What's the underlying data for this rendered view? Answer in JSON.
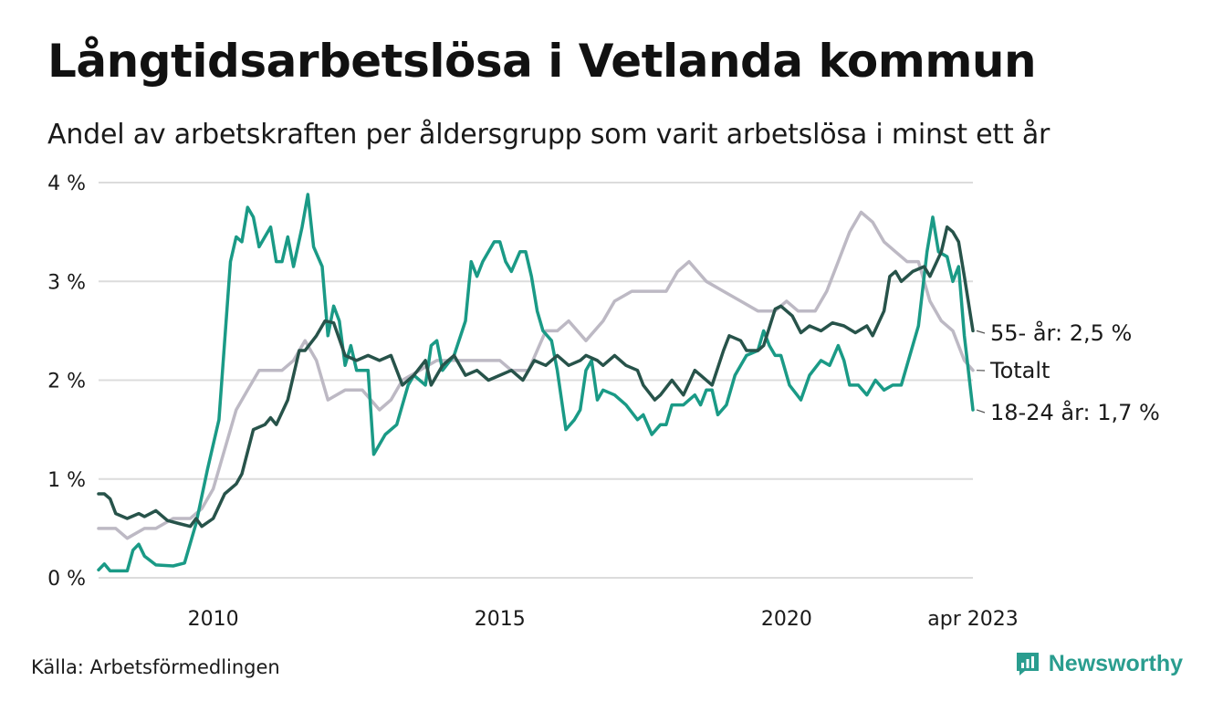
{
  "title": "Långtidsarbetslösa i Vetlanda kommun",
  "subtitle": "Andel av arbetskraften per åldersgrupp som varit arbetslösa i minst ett år",
  "source": "Källa: Arbetsförmedlingen",
  "brand": "Newsworthy",
  "colors": {
    "young": "#1a9a86",
    "old": "#27534a",
    "total": "#bdb9c4",
    "grid": "#dcdcdc",
    "brand": "#2a9d8f"
  },
  "chart_data": {
    "type": "line",
    "title": "Långtidsarbetslösa i Vetlanda kommun",
    "ylim": [
      0,
      4
    ],
    "xlim": [
      2008.0,
      2023.25
    ],
    "grid": true,
    "y_ticks": [
      {
        "value": 0,
        "label": "0 %"
      },
      {
        "value": 1,
        "label": "1 %"
      },
      {
        "value": 2,
        "label": "2 %"
      },
      {
        "value": 3,
        "label": "3 %"
      },
      {
        "value": 4,
        "label": "4 %"
      }
    ],
    "x_ticks": [
      {
        "value": 2010,
        "label": "2010"
      },
      {
        "value": 2015,
        "label": "2015"
      },
      {
        "value": 2020,
        "label": "2020"
      },
      {
        "value": 2023.25,
        "label": "apr 2023"
      }
    ],
    "series": [
      {
        "key": "total",
        "end_label": "Totalt",
        "points": [
          [
            2008.0,
            0.5
          ],
          [
            2008.3,
            0.5
          ],
          [
            2008.5,
            0.4
          ],
          [
            2008.8,
            0.5
          ],
          [
            2009.0,
            0.5
          ],
          [
            2009.3,
            0.6
          ],
          [
            2009.6,
            0.6
          ],
          [
            2009.8,
            0.7
          ],
          [
            2010.0,
            0.9
          ],
          [
            2010.2,
            1.3
          ],
          [
            2010.4,
            1.7
          ],
          [
            2010.6,
            1.9
          ],
          [
            2010.8,
            2.1
          ],
          [
            2011.0,
            2.1
          ],
          [
            2011.2,
            2.1
          ],
          [
            2011.4,
            2.2
          ],
          [
            2011.6,
            2.4
          ],
          [
            2011.8,
            2.2
          ],
          [
            2012.0,
            1.8
          ],
          [
            2012.3,
            1.9
          ],
          [
            2012.6,
            1.9
          ],
          [
            2012.9,
            1.7
          ],
          [
            2013.1,
            1.8
          ],
          [
            2013.3,
            2.0
          ],
          [
            2013.6,
            2.1
          ],
          [
            2013.9,
            2.2
          ],
          [
            2014.2,
            2.2
          ],
          [
            2014.5,
            2.2
          ],
          [
            2014.8,
            2.2
          ],
          [
            2015.0,
            2.2
          ],
          [
            2015.2,
            2.1
          ],
          [
            2015.5,
            2.1
          ],
          [
            2015.8,
            2.5
          ],
          [
            2016.0,
            2.5
          ],
          [
            2016.2,
            2.6
          ],
          [
            2016.5,
            2.4
          ],
          [
            2016.8,
            2.6
          ],
          [
            2017.0,
            2.8
          ],
          [
            2017.3,
            2.9
          ],
          [
            2017.6,
            2.9
          ],
          [
            2017.9,
            2.9
          ],
          [
            2018.1,
            3.1
          ],
          [
            2018.3,
            3.2
          ],
          [
            2018.6,
            3.0
          ],
          [
            2018.9,
            2.9
          ],
          [
            2019.2,
            2.8
          ],
          [
            2019.5,
            2.7
          ],
          [
            2019.8,
            2.7
          ],
          [
            2020.0,
            2.8
          ],
          [
            2020.2,
            2.7
          ],
          [
            2020.5,
            2.7
          ],
          [
            2020.7,
            2.9
          ],
          [
            2020.9,
            3.2
          ],
          [
            2021.1,
            3.5
          ],
          [
            2021.3,
            3.7
          ],
          [
            2021.5,
            3.6
          ],
          [
            2021.7,
            3.4
          ],
          [
            2021.9,
            3.3
          ],
          [
            2022.1,
            3.2
          ],
          [
            2022.3,
            3.2
          ],
          [
            2022.5,
            2.8
          ],
          [
            2022.7,
            2.6
          ],
          [
            2022.9,
            2.5
          ],
          [
            2023.1,
            2.2
          ],
          [
            2023.25,
            2.1
          ]
        ]
      },
      {
        "key": "young",
        "name": "18-24 år",
        "end_label": "18-24 år: 1,7 %",
        "points": [
          [
            2008.0,
            0.08
          ],
          [
            2008.1,
            0.14
          ],
          [
            2008.2,
            0.07
          ],
          [
            2008.4,
            0.07
          ],
          [
            2008.5,
            0.07
          ],
          [
            2008.6,
            0.28
          ],
          [
            2008.7,
            0.34
          ],
          [
            2008.8,
            0.22
          ],
          [
            2009.0,
            0.13
          ],
          [
            2009.3,
            0.12
          ],
          [
            2009.5,
            0.15
          ],
          [
            2009.7,
            0.55
          ],
          [
            2009.9,
            1.1
          ],
          [
            2010.1,
            1.6
          ],
          [
            2010.3,
            3.2
          ],
          [
            2010.4,
            3.45
          ],
          [
            2010.5,
            3.4
          ],
          [
            2010.6,
            3.75
          ],
          [
            2010.7,
            3.65
          ],
          [
            2010.8,
            3.35
          ],
          [
            2010.9,
            3.45
          ],
          [
            2011.0,
            3.55
          ],
          [
            2011.1,
            3.2
          ],
          [
            2011.2,
            3.2
          ],
          [
            2011.3,
            3.45
          ],
          [
            2011.4,
            3.15
          ],
          [
            2011.55,
            3.55
          ],
          [
            2011.65,
            3.88
          ],
          [
            2011.75,
            3.35
          ],
          [
            2011.9,
            3.15
          ],
          [
            2012.0,
            2.45
          ],
          [
            2012.1,
            2.75
          ],
          [
            2012.2,
            2.6
          ],
          [
            2012.3,
            2.15
          ],
          [
            2012.4,
            2.35
          ],
          [
            2012.5,
            2.1
          ],
          [
            2012.7,
            2.1
          ],
          [
            2012.8,
            1.25
          ],
          [
            2013.0,
            1.45
          ],
          [
            2013.2,
            1.55
          ],
          [
            2013.4,
            1.95
          ],
          [
            2013.5,
            2.05
          ],
          [
            2013.7,
            1.95
          ],
          [
            2013.8,
            2.35
          ],
          [
            2013.9,
            2.4
          ],
          [
            2014.0,
            2.1
          ],
          [
            2014.2,
            2.25
          ],
          [
            2014.4,
            2.6
          ],
          [
            2014.5,
            3.2
          ],
          [
            2014.6,
            3.05
          ],
          [
            2014.7,
            3.2
          ],
          [
            2014.9,
            3.4
          ],
          [
            2015.0,
            3.4
          ],
          [
            2015.1,
            3.2
          ],
          [
            2015.2,
            3.1
          ],
          [
            2015.35,
            3.3
          ],
          [
            2015.45,
            3.3
          ],
          [
            2015.55,
            3.05
          ],
          [
            2015.65,
            2.7
          ],
          [
            2015.75,
            2.5
          ],
          [
            2015.9,
            2.4
          ],
          [
            2016.0,
            2.1
          ],
          [
            2016.15,
            1.5
          ],
          [
            2016.3,
            1.6
          ],
          [
            2016.4,
            1.7
          ],
          [
            2016.5,
            2.1
          ],
          [
            2016.6,
            2.2
          ],
          [
            2016.7,
            1.8
          ],
          [
            2016.8,
            1.9
          ],
          [
            2017.0,
            1.85
          ],
          [
            2017.2,
            1.75
          ],
          [
            2017.4,
            1.6
          ],
          [
            2017.5,
            1.65
          ],
          [
            2017.65,
            1.45
          ],
          [
            2017.8,
            1.55
          ],
          [
            2017.9,
            1.55
          ],
          [
            2018.0,
            1.75
          ],
          [
            2018.2,
            1.75
          ],
          [
            2018.4,
            1.85
          ],
          [
            2018.5,
            1.75
          ],
          [
            2018.6,
            1.9
          ],
          [
            2018.7,
            1.9
          ],
          [
            2018.8,
            1.65
          ],
          [
            2018.95,
            1.75
          ],
          [
            2019.1,
            2.05
          ],
          [
            2019.3,
            2.25
          ],
          [
            2019.5,
            2.3
          ],
          [
            2019.6,
            2.5
          ],
          [
            2019.7,
            2.35
          ],
          [
            2019.8,
            2.25
          ],
          [
            2019.9,
            2.25
          ],
          [
            2020.05,
            1.95
          ],
          [
            2020.25,
            1.8
          ],
          [
            2020.4,
            2.05
          ],
          [
            2020.6,
            2.2
          ],
          [
            2020.75,
            2.15
          ],
          [
            2020.9,
            2.35
          ],
          [
            2021.0,
            2.2
          ],
          [
            2021.1,
            1.95
          ],
          [
            2021.25,
            1.95
          ],
          [
            2021.4,
            1.85
          ],
          [
            2021.55,
            2.0
          ],
          [
            2021.7,
            1.9
          ],
          [
            2021.85,
            1.95
          ],
          [
            2022.0,
            1.95
          ],
          [
            2022.15,
            2.25
          ],
          [
            2022.3,
            2.55
          ],
          [
            2022.45,
            3.3
          ],
          [
            2022.55,
            3.65
          ],
          [
            2022.65,
            3.3
          ],
          [
            2022.8,
            3.25
          ],
          [
            2022.9,
            3.0
          ],
          [
            2023.0,
            3.15
          ],
          [
            2023.1,
            2.45
          ],
          [
            2023.25,
            1.7
          ]
        ]
      },
      {
        "key": "old",
        "name": "55- år",
        "end_label": "55- år: 2,5 %",
        "points": [
          [
            2008.0,
            0.85
          ],
          [
            2008.1,
            0.85
          ],
          [
            2008.2,
            0.8
          ],
          [
            2008.3,
            0.65
          ],
          [
            2008.5,
            0.6
          ],
          [
            2008.7,
            0.65
          ],
          [
            2008.8,
            0.62
          ],
          [
            2009.0,
            0.68
          ],
          [
            2009.2,
            0.58
          ],
          [
            2009.4,
            0.55
          ],
          [
            2009.6,
            0.52
          ],
          [
            2009.7,
            0.6
          ],
          [
            2009.8,
            0.52
          ],
          [
            2010.0,
            0.6
          ],
          [
            2010.2,
            0.85
          ],
          [
            2010.4,
            0.95
          ],
          [
            2010.5,
            1.05
          ],
          [
            2010.7,
            1.5
          ],
          [
            2010.9,
            1.55
          ],
          [
            2011.0,
            1.62
          ],
          [
            2011.1,
            1.55
          ],
          [
            2011.3,
            1.8
          ],
          [
            2011.5,
            2.3
          ],
          [
            2011.6,
            2.3
          ],
          [
            2011.8,
            2.45
          ],
          [
            2011.95,
            2.6
          ],
          [
            2012.1,
            2.58
          ],
          [
            2012.3,
            2.25
          ],
          [
            2012.5,
            2.2
          ],
          [
            2012.7,
            2.25
          ],
          [
            2012.9,
            2.2
          ],
          [
            2013.1,
            2.25
          ],
          [
            2013.3,
            1.95
          ],
          [
            2013.5,
            2.05
          ],
          [
            2013.7,
            2.2
          ],
          [
            2013.8,
            1.95
          ],
          [
            2014.0,
            2.15
          ],
          [
            2014.2,
            2.25
          ],
          [
            2014.4,
            2.05
          ],
          [
            2014.6,
            2.1
          ],
          [
            2014.8,
            2.0
          ],
          [
            2015.0,
            2.05
          ],
          [
            2015.2,
            2.1
          ],
          [
            2015.4,
            2.0
          ],
          [
            2015.6,
            2.2
          ],
          [
            2015.8,
            2.15
          ],
          [
            2016.0,
            2.25
          ],
          [
            2016.2,
            2.15
          ],
          [
            2016.4,
            2.2
          ],
          [
            2016.5,
            2.25
          ],
          [
            2016.7,
            2.2
          ],
          [
            2016.8,
            2.15
          ],
          [
            2017.0,
            2.25
          ],
          [
            2017.2,
            2.15
          ],
          [
            2017.4,
            2.1
          ],
          [
            2017.5,
            1.95
          ],
          [
            2017.7,
            1.8
          ],
          [
            2017.8,
            1.85
          ],
          [
            2018.0,
            2.0
          ],
          [
            2018.2,
            1.85
          ],
          [
            2018.4,
            2.1
          ],
          [
            2018.5,
            2.05
          ],
          [
            2018.7,
            1.95
          ],
          [
            2018.9,
            2.3
          ],
          [
            2019.0,
            2.45
          ],
          [
            2019.2,
            2.4
          ],
          [
            2019.3,
            2.3
          ],
          [
            2019.5,
            2.3
          ],
          [
            2019.6,
            2.35
          ],
          [
            2019.8,
            2.72
          ],
          [
            2019.9,
            2.75
          ],
          [
            2020.1,
            2.65
          ],
          [
            2020.25,
            2.48
          ],
          [
            2020.4,
            2.55
          ],
          [
            2020.6,
            2.5
          ],
          [
            2020.8,
            2.58
          ],
          [
            2021.0,
            2.55
          ],
          [
            2021.2,
            2.48
          ],
          [
            2021.4,
            2.55
          ],
          [
            2021.5,
            2.45
          ],
          [
            2021.7,
            2.7
          ],
          [
            2021.8,
            3.05
          ],
          [
            2021.9,
            3.1
          ],
          [
            2022.0,
            3.0
          ],
          [
            2022.2,
            3.1
          ],
          [
            2022.4,
            3.15
          ],
          [
            2022.5,
            3.05
          ],
          [
            2022.7,
            3.3
          ],
          [
            2022.8,
            3.55
          ],
          [
            2022.9,
            3.5
          ],
          [
            2023.0,
            3.4
          ],
          [
            2023.1,
            3.05
          ],
          [
            2023.25,
            2.5
          ]
        ]
      }
    ]
  }
}
